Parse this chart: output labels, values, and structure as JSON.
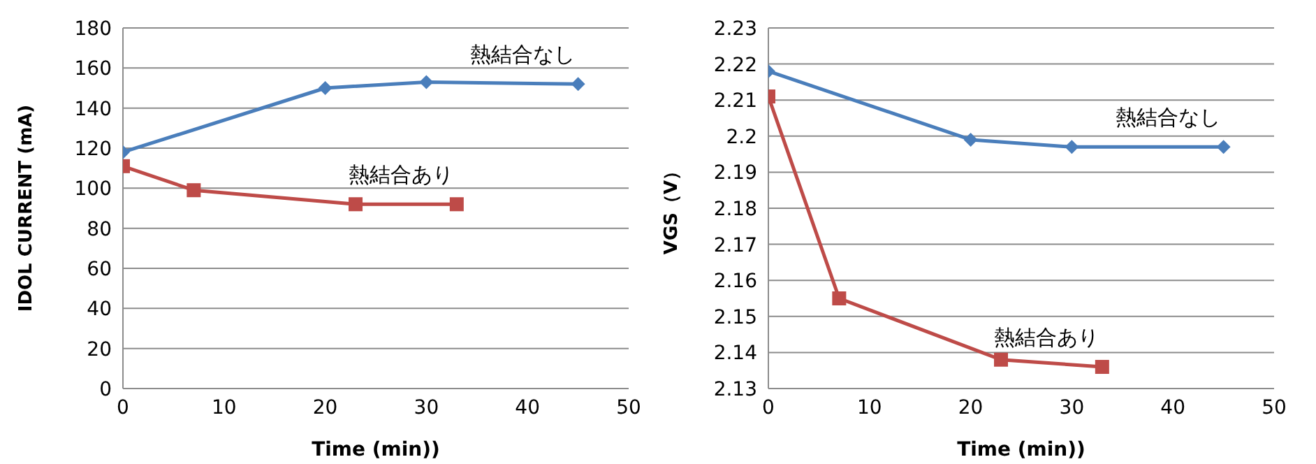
{
  "chart_data": [
    {
      "type": "line",
      "xlabel": "Time (min))",
      "ylabel": "IDOL CURRENT (mA)",
      "xlim": [
        0,
        50
      ],
      "xticks": [
        0,
        10,
        20,
        30,
        40,
        50
      ],
      "ylim": [
        0,
        180
      ],
      "yticks": [
        0,
        20,
        40,
        60,
        80,
        100,
        120,
        140,
        160,
        180
      ],
      "grid": "y",
      "legend": false,
      "series": [
        {
          "name": "熱結合なし",
          "color": "#4a7ebb",
          "marker": "diamond",
          "x": [
            0,
            20,
            30,
            45
          ],
          "values": [
            118,
            150,
            153,
            152
          ]
        },
        {
          "name": "熱結合あり",
          "color": "#be4b48",
          "marker": "square",
          "x": [
            0,
            7,
            23,
            33
          ],
          "values": [
            111,
            99,
            92,
            92
          ]
        }
      ]
    },
    {
      "type": "line",
      "xlabel": "Time (min))",
      "ylabel": "VGS（V）",
      "xlim": [
        0,
        50
      ],
      "xticks": [
        0,
        10,
        20,
        30,
        40,
        50
      ],
      "ylim": [
        2.13,
        2.23
      ],
      "yticks": [
        2.13,
        2.14,
        2.15,
        2.16,
        2.17,
        2.18,
        2.19,
        2.2,
        2.21,
        2.22,
        2.23
      ],
      "grid": "y",
      "legend": false,
      "series": [
        {
          "name": "熱結合なし",
          "color": "#4a7ebb",
          "marker": "diamond",
          "x": [
            0,
            20,
            30,
            45
          ],
          "values": [
            2.218,
            2.199,
            2.197,
            2.197
          ]
        },
        {
          "name": "熱結合あり",
          "color": "#be4b48",
          "marker": "square",
          "x": [
            0,
            7,
            23,
            33
          ],
          "values": [
            2.211,
            2.155,
            2.138,
            2.136
          ]
        }
      ]
    }
  ]
}
